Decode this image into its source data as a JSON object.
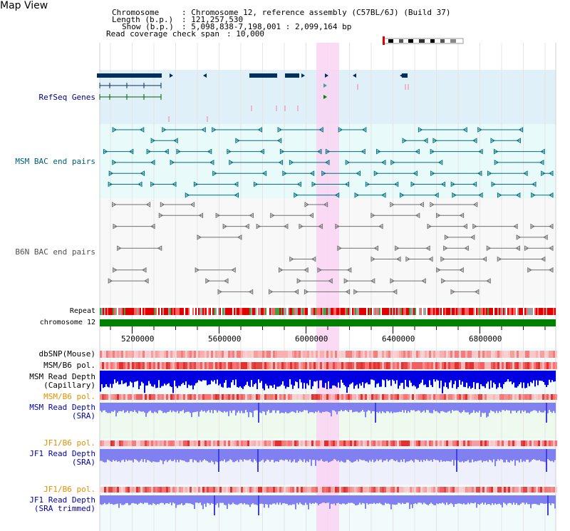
{
  "title": "Map View",
  "header": {
    "chromosome_label": "Chromosome",
    "chromosome_value": ": Chromosome 12, reference assembly (C57BL/6J) (Build 37)",
    "length_label": "Length (b.p.)",
    "length_value": ": 121,257,530",
    "show_label": "Show (b.p.)",
    "show_value": ": 5,098,838-7,198,001 : 2,099,164 bp",
    "coverage_label": "Read coverage check span",
    "coverage_value": ": 10,000"
  },
  "tracks": {
    "refseq": "RefSeq Genes",
    "msm_bac": "MSM BAC end pairs",
    "b6n_bac": "B6N BAC end pairs",
    "repeat": "Repeat",
    "chromosome": "chromosome 12",
    "dbsnp": "dbSNP(Mouse)",
    "msm_b6_pol_1": "MSM/B6 pol.",
    "msm_depth_cap_1": "MSM Read Depth",
    "msm_depth_cap_2": "(Capillary)",
    "msm_b6_pol_2": "MSM/B6 pol.",
    "msm_depth_sra_1": "MSM Read Depth",
    "msm_depth_sra_2": "(SRA)",
    "jf1_b6_pol_1": "JF1/B6 pol.",
    "jf1_depth_sra_1": "JF1 Read Depth",
    "jf1_depth_sra_2": "(SRA)",
    "jf1_b6_pol_2": "JF1/B6 pol.",
    "jf1_depth_trim_1": "JF1 Read Depth",
    "jf1_depth_trim_2": "(SRA trimmed)"
  },
  "axis": {
    "ticks": [
      "5200000",
      "5600000",
      "6000000",
      "6400000",
      "6800000"
    ]
  },
  "colors": {
    "refseq_bg": "#dff0f8",
    "msm_bac_bg": "#e8fafa",
    "b6n_bac_bg": "#f8f8f8",
    "highlight": "#f9d4f2",
    "chromosome": "#008000",
    "gene": "#003060",
    "msm_line": "#00707e",
    "b6n_line": "#707070",
    "depth_cap": "#0000e0",
    "depth_sra": "#8080f0",
    "pol": "#f08080"
  }
}
